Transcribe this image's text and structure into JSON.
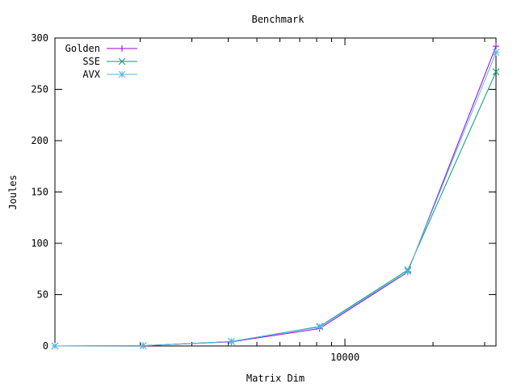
{
  "chart_data": {
    "type": "line",
    "title": "Benchmark",
    "xlabel": "Matrix Dim",
    "ylabel": "Joules",
    "xscale": "log",
    "xlim": [
      1024,
      32768
    ],
    "ylim": [
      0,
      300
    ],
    "x_ticks": [
      10000
    ],
    "y_ticks": [
      0,
      50,
      100,
      150,
      200,
      250,
      300
    ],
    "grid": false,
    "legend_position": "top-left",
    "x": [
      1024,
      2048,
      4096,
      8192,
      16384,
      32768
    ],
    "series": [
      {
        "name": "Golden",
        "color": "#9400d3",
        "marker": "plus",
        "values": [
          0.02,
          0.3,
          4.0,
          17.0,
          72.0,
          292.0
        ]
      },
      {
        "name": "SSE",
        "color": "#009e73",
        "marker": "cross",
        "values": [
          0.02,
          0.3,
          4.3,
          19.0,
          74.0,
          267.0
        ]
      },
      {
        "name": "AVX",
        "color": "#56b4e9",
        "marker": "star",
        "values": [
          0.02,
          0.3,
          4.3,
          18.5,
          72.5,
          286.0
        ]
      }
    ]
  }
}
